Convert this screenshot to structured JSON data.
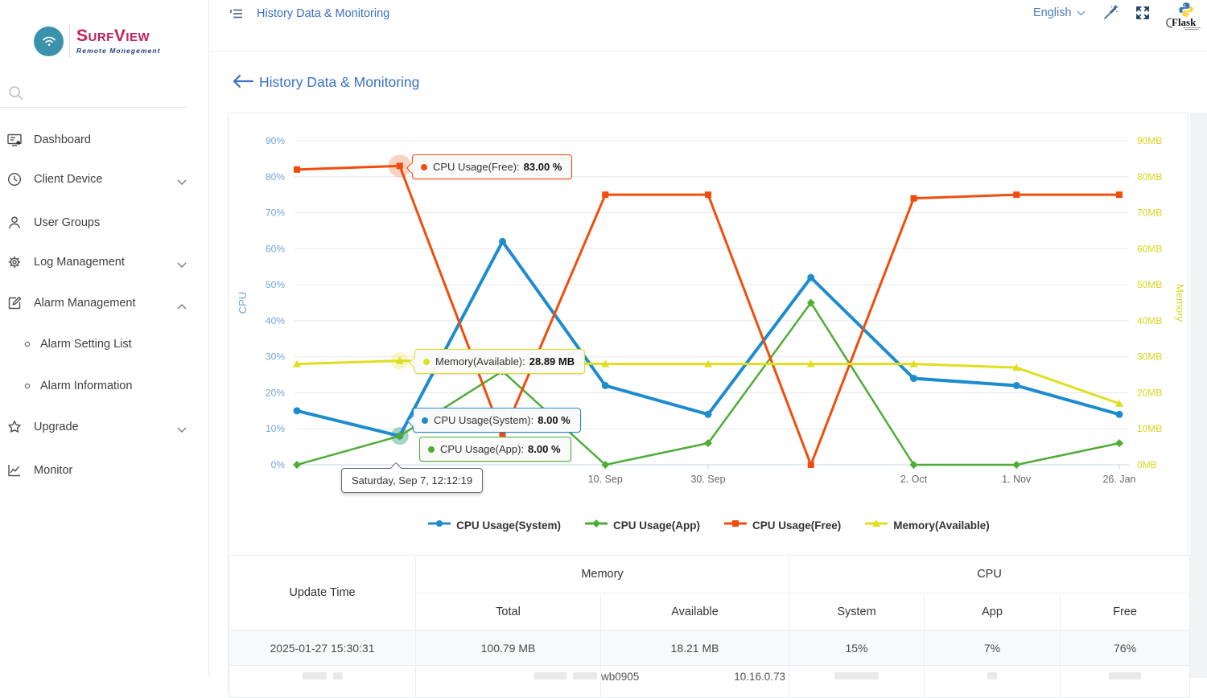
{
  "brand": {
    "name": "SurfView",
    "subtitle": "Remote Monegement"
  },
  "sidebar": {
    "items": [
      {
        "label": "Dashboard",
        "icon": "dashboard-icon"
      },
      {
        "label": "Client Device",
        "icon": "clock-icon",
        "chevron": "down"
      },
      {
        "label": "User Groups",
        "icon": "user-icon"
      },
      {
        "label": "Log Management",
        "icon": "gear-icon",
        "chevron": "down"
      },
      {
        "label": "Alarm Management",
        "icon": "edit-icon",
        "chevron": "up",
        "children": [
          "Alarm Setting List",
          "Alarm Information"
        ]
      },
      {
        "label": "Upgrade",
        "icon": "star-icon",
        "chevron": "down"
      },
      {
        "label": "Monitor",
        "icon": "chart-icon"
      }
    ]
  },
  "header": {
    "menu_tab": "History Data & Monitoring",
    "language": "English"
  },
  "page": {
    "title": "History Data & Monitoring"
  },
  "chart_data": {
    "type": "line",
    "title": "",
    "categories": [
      "",
      "",
      "",
      "10. Sep",
      "30. Sep",
      "",
      "2. Oct",
      "1. Nov",
      "26. Jan"
    ],
    "hover_index": 1,
    "hover_date": "Saturday, Sep 7, 12:12:19",
    "y_axis_left": {
      "title": "CPU",
      "unit": "%",
      "min": 0,
      "max": 90,
      "step": 10,
      "color": "#74a3d8"
    },
    "y_axis_right": {
      "title": "Memory",
      "unit": "MB",
      "min": 0,
      "max": 90,
      "step": 10,
      "color": "#d6d61e"
    },
    "series": [
      {
        "name": "CPU Usage(System)",
        "color": "#1d8cce",
        "marker": "circle",
        "line_width": 4,
        "values": [
          15,
          8,
          62,
          22,
          14,
          52,
          24,
          22,
          14
        ]
      },
      {
        "name": "CPU Usage(App)",
        "color": "#4ead35",
        "marker": "diamond",
        "line_width": 2.5,
        "values": [
          0,
          8,
          26,
          0,
          6,
          45,
          0,
          0,
          6
        ]
      },
      {
        "name": "CPU Usage(Free)",
        "color": "#f24c0c",
        "marker": "square",
        "line_width": 3,
        "values": [
          82,
          83,
          8,
          75,
          75,
          0,
          74,
          75,
          75
        ]
      },
      {
        "name": "Memory(Available)",
        "color": "#dfdf20",
        "marker": "triangle",
        "line_width": 3,
        "values": [
          28,
          28.89,
          28.5,
          28,
          28,
          28,
          28,
          27,
          17
        ]
      }
    ]
  },
  "tooltips": {
    "date": "Saturday, Sep 7, 12:12:19",
    "items": [
      {
        "label": "CPU Usage(Free):",
        "value": "83.00 %",
        "color": "#f24c0c"
      },
      {
        "label": "Memory(Available):",
        "value": "28.89 MB",
        "color": "#dfdf20"
      },
      {
        "label": "CPU Usage(System):",
        "value": "8.00 %",
        "color": "#1d8cce"
      },
      {
        "label": "CPU Usage(App):",
        "value": "8.00 %",
        "color": "#4ead35"
      }
    ]
  },
  "table": {
    "headers": {
      "update_time": "Update Time",
      "memory": "Memory",
      "cpu": "CPU",
      "memory_sub": [
        "Total",
        "Available"
      ],
      "cpu_sub": [
        "System",
        "App",
        "Free"
      ]
    },
    "rows": [
      [
        "2025-01-27 15:30:31",
        "100.79 MB",
        "18.21 MB",
        "15%",
        "7%",
        "76%"
      ]
    ],
    "next_row": {
      "host": "wb0905",
      "ip": "10.16.0.73"
    }
  }
}
